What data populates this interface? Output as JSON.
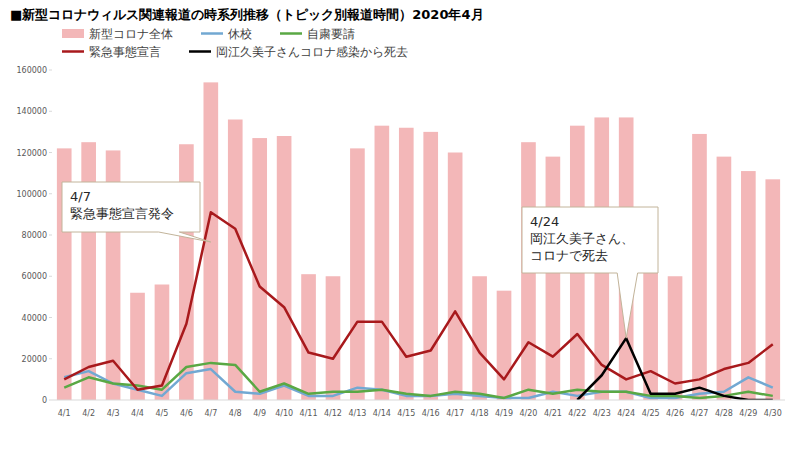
{
  "chart_data": {
    "type": "bar",
    "title": "■新型コロナウィルス関連報道の時系列推移（トピック別報道時間）2020年4月",
    "categories": [
      "4/1",
      "4/2",
      "4/3",
      "4/4",
      "4/5",
      "4/6",
      "4/7",
      "4/8",
      "4/9",
      "4/10",
      "4/11",
      "4/12",
      "4/13",
      "4/14",
      "4/15",
      "4/16",
      "4/17",
      "4/18",
      "4/19",
      "4/20",
      "4/21",
      "4/22",
      "4/23",
      "4/24",
      "4/25",
      "4/26",
      "4/27",
      "4/28",
      "4/29",
      "4/30"
    ],
    "series": [
      {
        "name": "新型コロナ全体",
        "type": "bar",
        "color": "#f3b7b8",
        "values": [
          122000,
          125000,
          121000,
          52000,
          56000,
          124000,
          154000,
          136000,
          127000,
          128000,
          61000,
          60000,
          122000,
          133000,
          132000,
          130000,
          120000,
          60000,
          53000,
          125000,
          118000,
          133000,
          137000,
          137000,
          62000,
          60000,
          129000,
          118000,
          111000,
          107000
        ]
      },
      {
        "name": "休校",
        "type": "line",
        "color": "#72a8d2",
        "values": [
          11000,
          14000,
          8000,
          5000,
          2000,
          13000,
          15000,
          4000,
          3000,
          7000,
          2000,
          2000,
          6000,
          5000,
          2000,
          2000,
          3000,
          2000,
          1000,
          1000,
          4000,
          2000,
          4000,
          4000,
          1000,
          1000,
          3000,
          4000,
          11000,
          6000
        ]
      },
      {
        "name": "自粛要請",
        "type": "line",
        "color": "#5aa844",
        "values": [
          6000,
          11000,
          8000,
          7000,
          5000,
          16000,
          18000,
          17000,
          4000,
          8000,
          3000,
          4000,
          4000,
          5000,
          3000,
          2000,
          4000,
          3000,
          1000,
          5000,
          3000,
          5000,
          4000,
          4000,
          2000,
          2000,
          1000,
          2000,
          4000,
          2000
        ]
      },
      {
        "name": "緊急事態宣言",
        "type": "line",
        "color": "#a8191c",
        "values": [
          10000,
          16000,
          19000,
          5000,
          7000,
          37000,
          91000,
          83000,
          55000,
          45000,
          23000,
          20000,
          38000,
          38000,
          21000,
          24000,
          43000,
          23000,
          10000,
          28000,
          21000,
          32000,
          17000,
          10000,
          14000,
          8000,
          10000,
          15000,
          18000,
          27000
        ]
      },
      {
        "name": "岡江久美子さんコロナ感染から死去",
        "type": "line",
        "color": "#000000",
        "values": [
          null,
          null,
          null,
          null,
          null,
          null,
          null,
          null,
          null,
          null,
          null,
          null,
          null,
          null,
          null,
          null,
          null,
          null,
          null,
          null,
          null,
          0,
          12000,
          30000,
          3000,
          3000,
          6000,
          2000,
          0,
          0
        ]
      }
    ],
    "ylim": [
      0,
      160000
    ],
    "yticks": [
      0,
      20000,
      40000,
      60000,
      80000,
      100000,
      120000,
      140000,
      160000
    ],
    "grid": false,
    "legend": "top",
    "annotations": [
      {
        "at": "4/7",
        "text": [
          "4/7",
          "緊急事態宣言発令"
        ]
      },
      {
        "at": "4/24",
        "text": [
          "4/24",
          "岡江久美子さん、",
          "コロナで死去"
        ]
      }
    ]
  }
}
